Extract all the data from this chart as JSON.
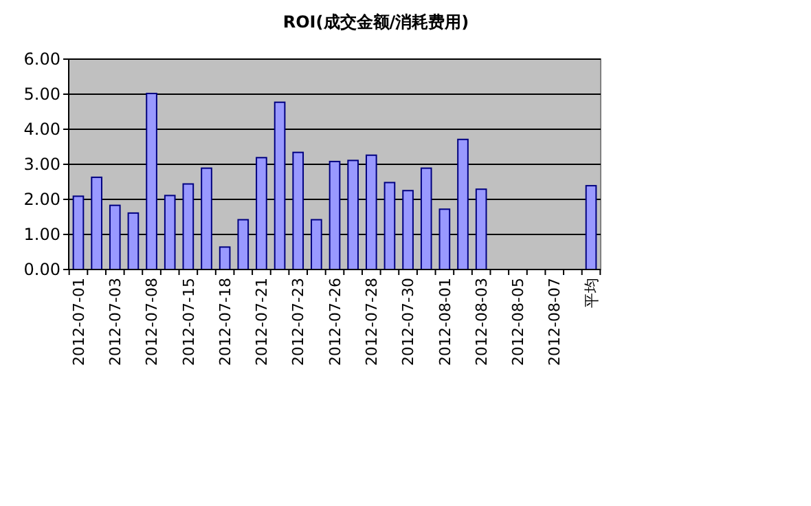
{
  "chart_data": {
    "type": "bar",
    "title": "ROI(成交金额/消耗费用)",
    "categories": [
      "2012-07-01",
      null,
      "2012-07-03",
      null,
      "2012-07-08",
      null,
      "2012-07-15",
      null,
      "2012-07-18",
      null,
      "2012-07-21",
      null,
      "2012-07-23",
      null,
      "2012-07-26",
      null,
      "2012-07-28",
      null,
      "2012-07-30",
      null,
      "2012-08-01",
      null,
      "2012-08-03",
      null,
      "2012-08-05",
      null,
      "2012-08-07",
      null,
      "平均"
    ],
    "values": [
      2.09,
      2.63,
      1.83,
      1.61,
      5.02,
      2.11,
      2.44,
      2.89,
      0.64,
      1.42,
      3.19,
      4.77,
      3.34,
      1.42,
      3.08,
      3.11,
      3.26,
      2.48,
      2.25,
      2.89,
      1.72,
      3.71,
      2.29,
      null,
      null,
      null,
      null,
      null,
      2.39
    ],
    "color": "#9999ff",
    "ylim": [
      0,
      6
    ],
    "yticks": [
      {
        "value": 0,
        "label": "0.00"
      },
      {
        "value": 1,
        "label": "1.00"
      },
      {
        "value": 2,
        "label": "2.00"
      },
      {
        "value": 3,
        "label": "3.00"
      },
      {
        "value": 4,
        "label": "4.00"
      },
      {
        "value": 5,
        "label": "5.00"
      },
      {
        "value": 6,
        "label": "6.00"
      }
    ],
    "grid": "y"
  }
}
